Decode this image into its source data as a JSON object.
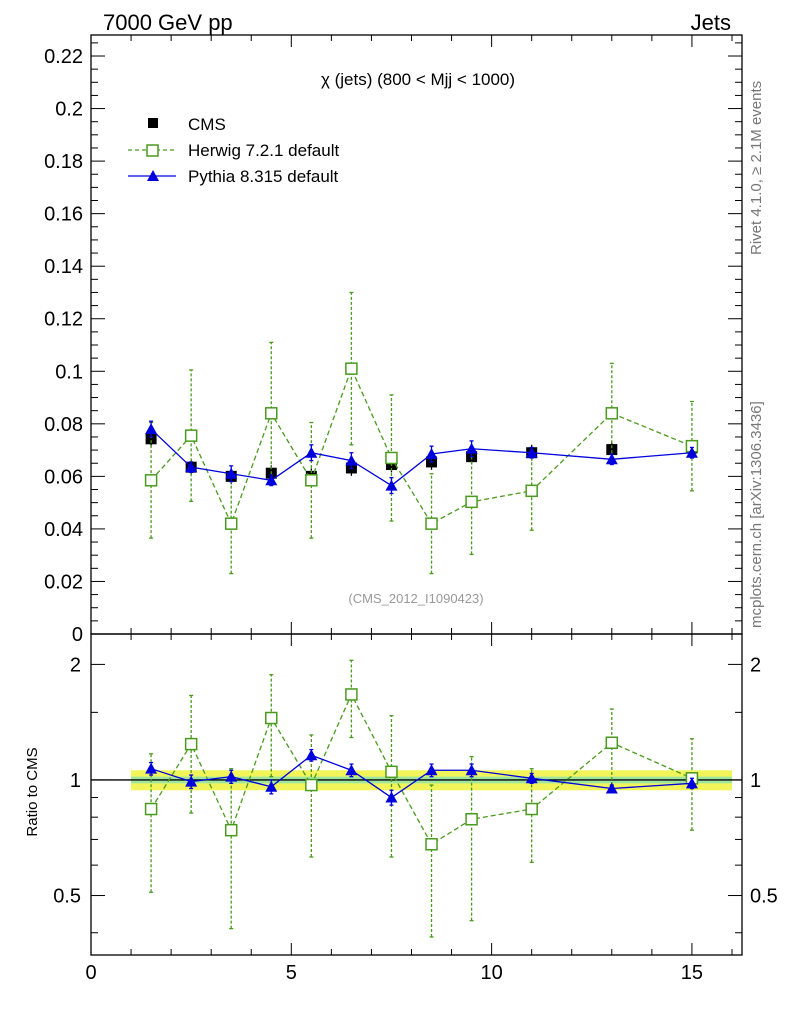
{
  "header": {
    "left_label": "7000 GeV pp",
    "right_label": "Jets",
    "side_events": "Rivet 4.1.0, ≥ 2.1M events",
    "side_source": "mcplots.cern.ch [arXiv:1306.3436]"
  },
  "chart_data": [
    {
      "type": "line",
      "panel": "main",
      "title": "χ (jets) (800 < Mjj < 1000)",
      "annotation": "(CMS_2012_I1090423)",
      "xlabel": "",
      "ylabel": "",
      "xlim": [
        0,
        16.25
      ],
      "ylim": [
        0,
        0.228
      ],
      "x_ticks": [
        0,
        5,
        10,
        15
      ],
      "y_ticks": [
        0,
        0.02,
        0.04,
        0.06,
        0.08,
        0.1,
        0.12,
        0.14,
        0.16,
        0.18,
        0.2,
        0.22
      ],
      "y_tick_labels": [
        "0",
        "0.02",
        "0.04",
        "0.06",
        "0.08",
        "0.1",
        "0.12",
        "0.14",
        "0.16",
        "0.18",
        "0.2",
        "0.22"
      ],
      "series": [
        {
          "name": "CMS",
          "color": "#000000",
          "marker": "filled-square",
          "x": [
            1.5,
            2.5,
            3.5,
            4.5,
            5.5,
            6.5,
            7.5,
            8.5,
            9.5,
            11.0,
            13.0,
            15.0
          ],
          "values": [
            0.0743,
            0.0635,
            0.06,
            0.0612,
            0.06,
            0.0632,
            0.0645,
            0.0655,
            0.0675,
            0.069,
            0.0702,
            0.0708
          ],
          "err": [
            0.003,
            0.003,
            0.003,
            0.003,
            0.003,
            0.003,
            0.003,
            0.003,
            0.003,
            0.003,
            0.003,
            0.003
          ]
        },
        {
          "name": "Herwig 7.2.1 default",
          "color": "#4a9a1e",
          "marker": "open-square",
          "x": [
            1.5,
            2.5,
            3.5,
            4.5,
            5.5,
            6.5,
            7.5,
            8.5,
            9.5,
            11.0,
            13.0,
            15.0
          ],
          "values": [
            0.0585,
            0.0755,
            0.042,
            0.084,
            0.0585,
            0.101,
            0.067,
            0.042,
            0.0503,
            0.0545,
            0.084,
            0.0715
          ],
          "err": [
            0.022,
            0.025,
            0.019,
            0.027,
            0.022,
            0.029,
            0.024,
            0.019,
            0.02,
            0.015,
            0.019,
            0.017
          ]
        },
        {
          "name": "Pythia 8.315 default",
          "color": "#0000dd",
          "marker": "filled-triangle",
          "x": [
            1.5,
            2.5,
            3.5,
            4.5,
            5.5,
            6.5,
            7.5,
            8.5,
            9.5,
            11.0,
            13.0,
            15.0
          ],
          "values": [
            0.078,
            0.0635,
            0.061,
            0.0585,
            0.069,
            0.066,
            0.0565,
            0.0685,
            0.0705,
            0.069,
            0.0665,
            0.069
          ],
          "err": [
            0.003,
            0.002,
            0.003,
            0.002,
            0.003,
            0.003,
            0.003,
            0.003,
            0.003,
            0.002,
            0.002,
            0.002
          ]
        }
      ]
    },
    {
      "type": "line",
      "panel": "ratio",
      "ylabel": "Ratio to CMS",
      "xlim": [
        0,
        16.25
      ],
      "ylim": [
        0.35,
        2.4
      ],
      "y_scale": "log",
      "x_ticks": [
        0,
        5,
        10,
        15
      ],
      "x_tick_labels": [
        "0",
        "5",
        "10",
        "15"
      ],
      "y_ticks": [
        0.5,
        1,
        2
      ],
      "y_tick_labels": [
        "0.5",
        "1",
        "2"
      ],
      "band": {
        "x_range": [
          1.0,
          16.0
        ],
        "inner": 0.02,
        "outer": 0.06,
        "inner_color": "#9ee6a0",
        "outer_color": "#f2f55a"
      },
      "series": [
        {
          "name": "Herwig 7.2.1 default",
          "color": "#4a9a1e",
          "marker": "open-square",
          "x": [
            1.5,
            2.5,
            3.5,
            4.5,
            5.5,
            6.5,
            7.5,
            8.5,
            9.5,
            11.0,
            13.0,
            15.0
          ],
          "values": [
            0.84,
            1.24,
            0.74,
            1.45,
            0.97,
            1.67,
            1.05,
            0.68,
            0.79,
            0.84,
            1.25,
            1.01
          ],
          "err": [
            0.33,
            0.42,
            0.33,
            0.43,
            0.34,
            0.38,
            0.42,
            0.29,
            0.36,
            0.23,
            0.28,
            0.27
          ]
        },
        {
          "name": "Pythia 8.315 default",
          "color": "#0000dd",
          "marker": "filled-triangle",
          "x": [
            1.5,
            2.5,
            3.5,
            4.5,
            5.5,
            6.5,
            7.5,
            8.5,
            9.5,
            11.0,
            13.0,
            15.0
          ],
          "values": [
            1.07,
            0.99,
            1.02,
            0.96,
            1.16,
            1.06,
            0.9,
            1.06,
            1.06,
            1.01,
            0.95,
            0.98
          ],
          "err": [
            0.04,
            0.04,
            0.04,
            0.04,
            0.04,
            0.04,
            0.04,
            0.04,
            0.04,
            0.03,
            0.02,
            0.03
          ]
        }
      ]
    }
  ]
}
